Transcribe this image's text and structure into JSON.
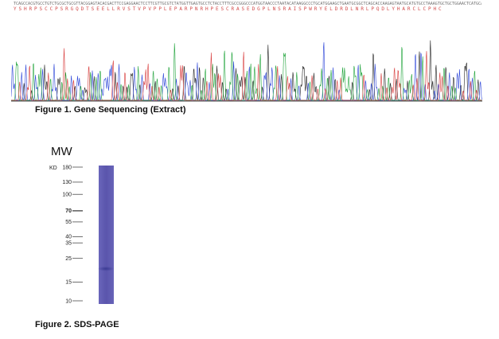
{
  "sequencing": {
    "dna_sequence": "TCAGCCACGTGCCTGTCTGCGCTGCGTTACGGAGTACACGACTTCCGAGGAACTCCTTCGTTGCGTCTATGGTTGAGTGCCTCTACCTTTCGCCGGGCCCATGGTAACCCTAATACATAAGGCCCTGCATGGAAGCTGAATGCGGCTCAGCACCAAGAGTAATGCATGTGCCTAAAGTGCTGCTGGAACTCATGCATCAAGAAAGAGCGAACCAATATGGATGCCCTCACGCATAG",
    "protein_sequence": "YSHRPSCCPSRGQDTSEELLRVSTVPVPPLEPARPNRHPESCRASEDGPLNSRAISPWRYELDRDLNRLPQDLYHARCLCPHC"
  },
  "figure1": {
    "caption": "Figure 1. Gene Sequencing (Extract)"
  },
  "figure2": {
    "caption": "Figure 2. SDS-PAGE",
    "mw_title": "MW",
    "unit_label": "KD",
    "markers": [
      {
        "label": "180",
        "value": 180,
        "bold": false
      },
      {
        "label": "130",
        "value": 130,
        "bold": false
      },
      {
        "label": "100",
        "value": 100,
        "bold": false
      },
      {
        "label": "70",
        "value": 70,
        "bold": true
      },
      {
        "label": "55",
        "value": 55,
        "bold": false
      },
      {
        "label": "40",
        "value": 40,
        "bold": false
      },
      {
        "label": "35",
        "value": 35,
        "bold": false
      },
      {
        "label": "25",
        "value": 25,
        "bold": false
      },
      {
        "label": "15",
        "value": 15,
        "bold": false
      },
      {
        "label": "10",
        "value": 10,
        "bold": false
      }
    ],
    "band_kd": 20,
    "lane_color": "#5a55ac",
    "band_color": "#3c3c96"
  },
  "chart_data": [
    {
      "type": "line",
      "title": "",
      "xlabel": "",
      "ylabel": "",
      "grid": false,
      "series": [
        {
          "color": "#222222"
        },
        {
          "color": "#2b44d8"
        },
        {
          "color": "#1fa33a"
        },
        {
          "color": "#d83a3a"
        }
      ]
    }
  ],
  "colors": {
    "text": "#111111",
    "dna_text": "#6d6d6d",
    "protein_text": "#d24a4a"
  }
}
